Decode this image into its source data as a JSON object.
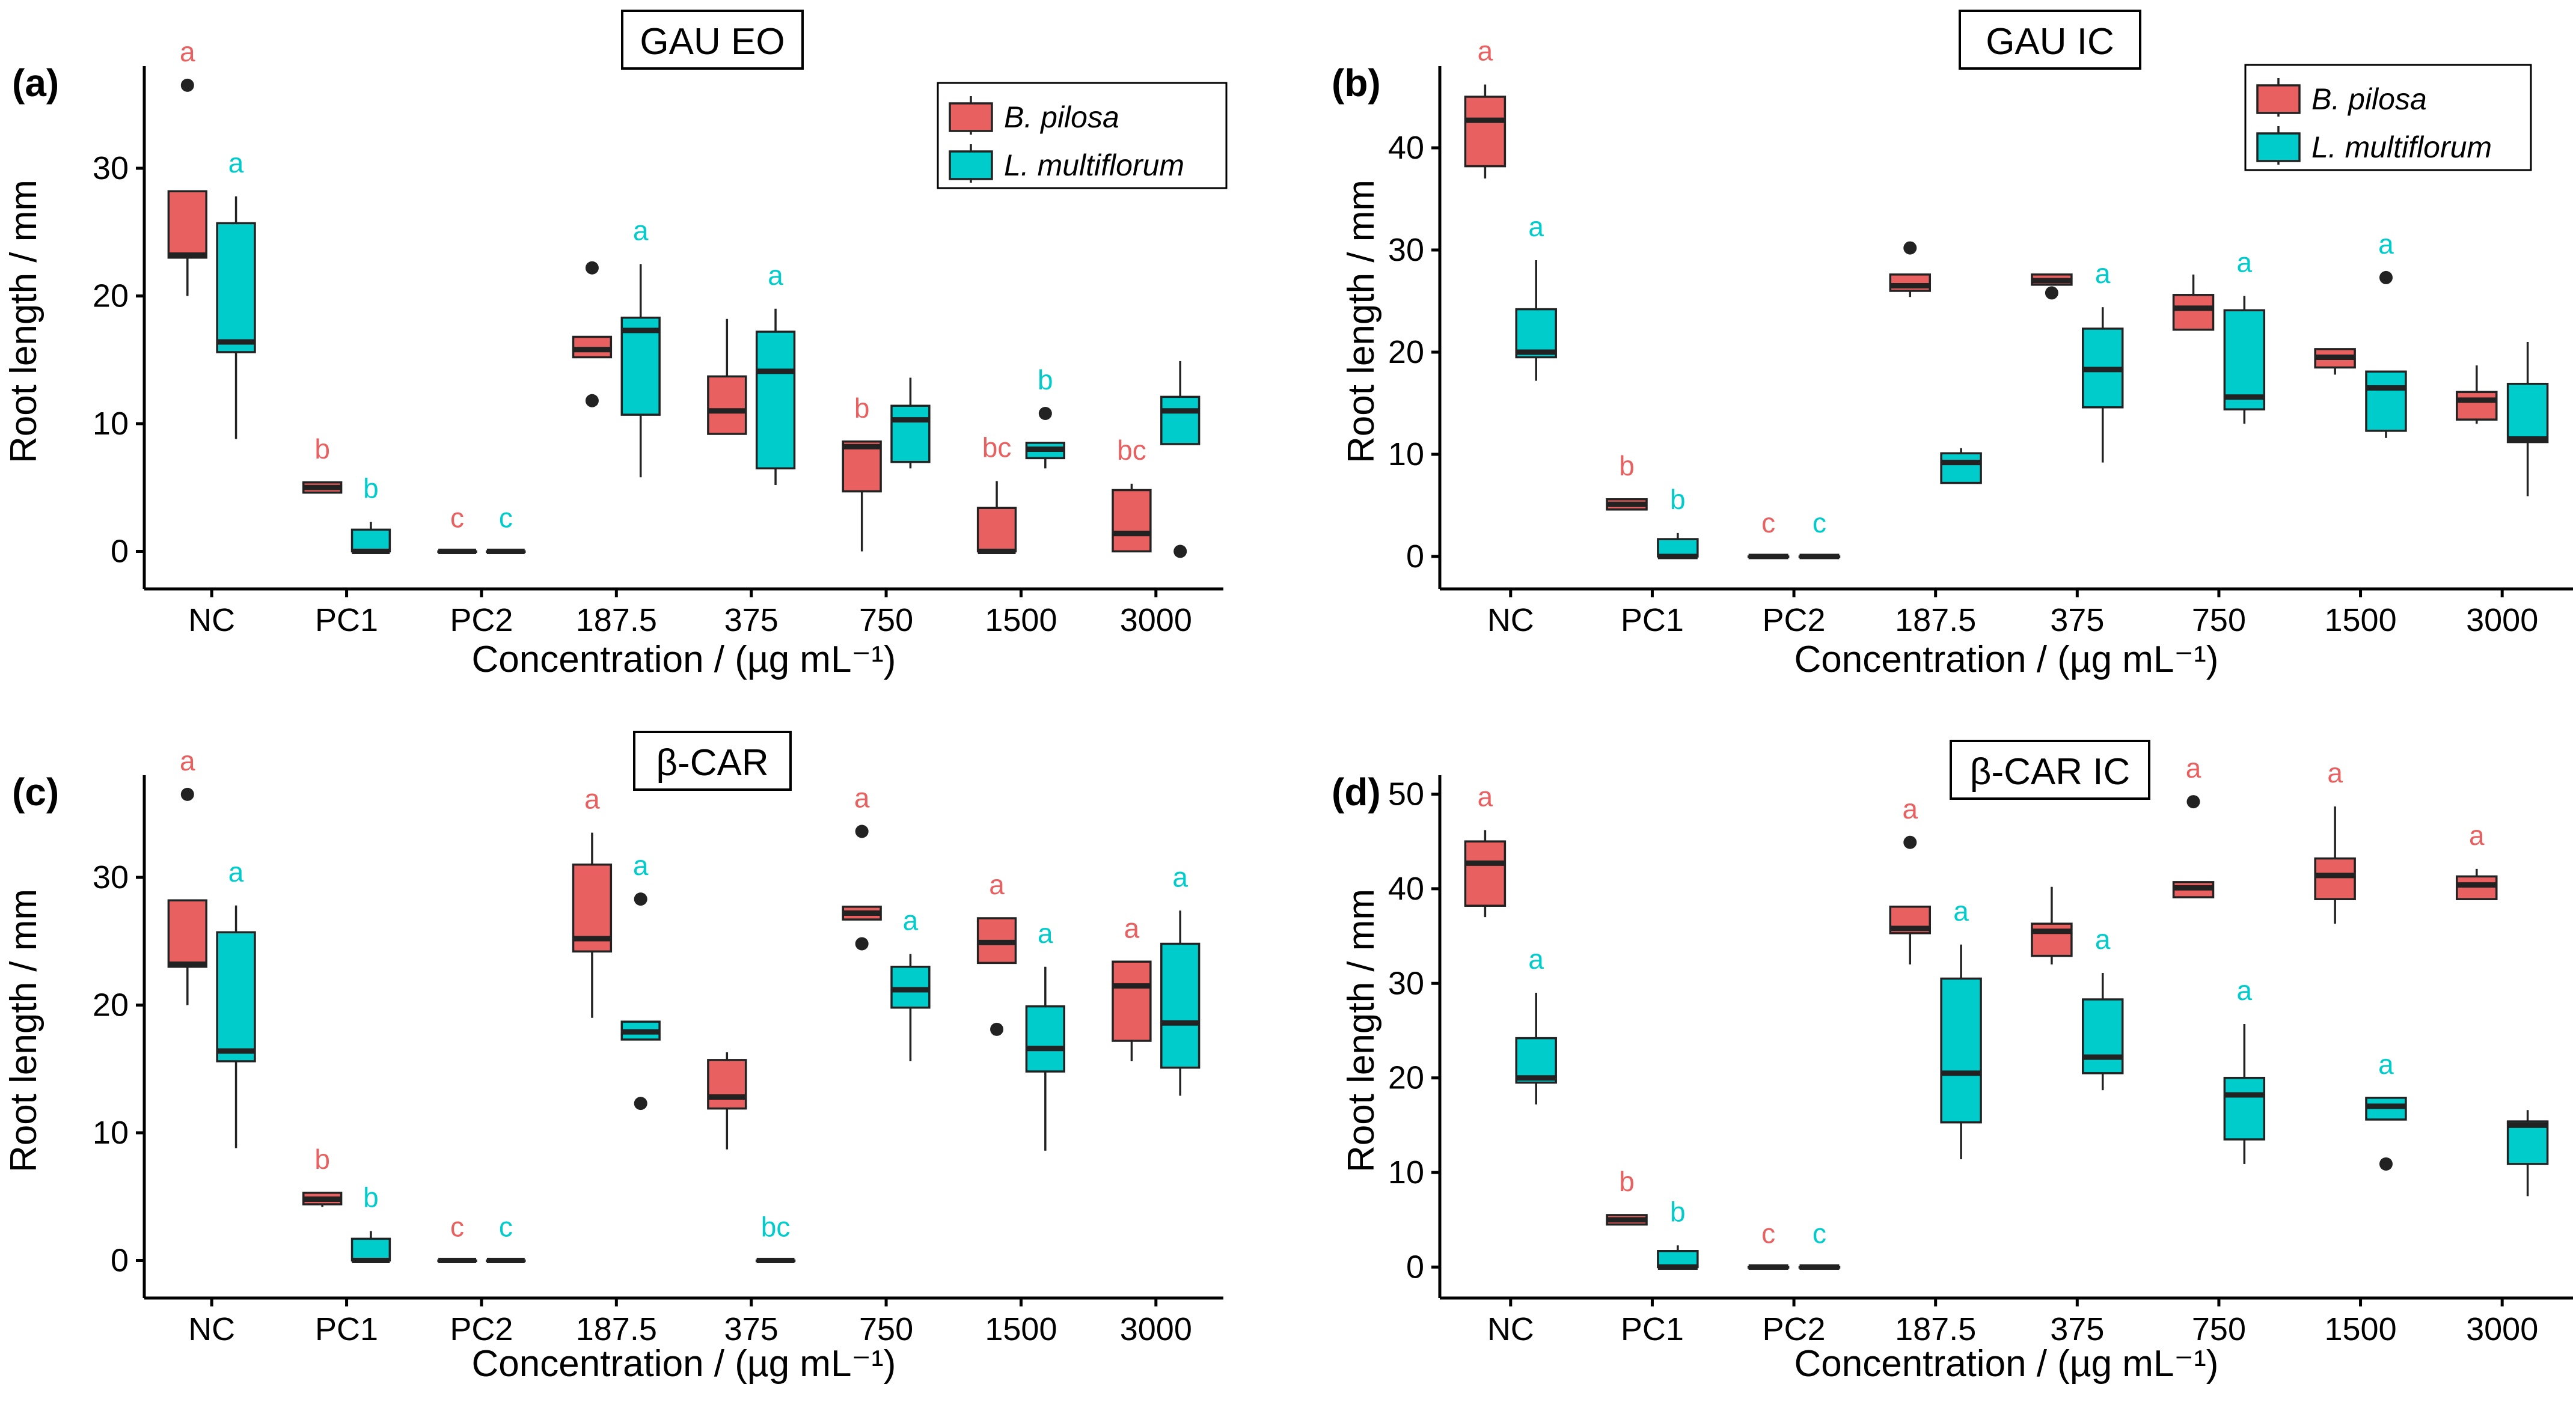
{
  "colors": {
    "b_pilosa": "#E86060",
    "l_multiflorum": "#00CCCC"
  },
  "legend": {
    "b_pilosa": "B. pilosa",
    "l_multiflorum": "L. multiflorum"
  },
  "chart_data": [
    {
      "type": "box",
      "panel_label": "(a)",
      "title": "GAU EO",
      "xlabel": "Concentration / (µg mL⁻¹)",
      "ylabel": "Root length / mm",
      "ylim": [
        -2,
        38
      ],
      "yticks": [
        0,
        10,
        20,
        30
      ],
      "categories": [
        "NC",
        "PC1",
        "PC2",
        "187.5",
        "375",
        "750",
        "1500",
        "3000"
      ],
      "series": [
        {
          "name": "B. pilosa",
          "boxes": [
            {
              "min": 20,
              "q1": 23,
              "median": 23.2,
              "q3": 28.2,
              "max": 28.2,
              "outliers": [
                36.5
              ],
              "letter": "a"
            },
            {
              "min": 4.6,
              "q1": 4.6,
              "median": 5,
              "q3": 5.4,
              "max": 5.4,
              "outliers": [],
              "letter": "b"
            },
            {
              "min": 0,
              "q1": 0,
              "median": 0,
              "q3": 0,
              "max": 0,
              "outliers": [],
              "letter": "c"
            },
            {
              "min": 15.2,
              "q1": 15.2,
              "median": 15.8,
              "q3": 16.8,
              "max": 16.8,
              "outliers": [
                22.2,
                11.8
              ],
              "letter": ""
            },
            {
              "min": 9.2,
              "q1": 9.2,
              "median": 11,
              "q3": 13.7,
              "max": 18.2,
              "outliers": [],
              "letter": ""
            },
            {
              "min": 0,
              "q1": 4.7,
              "median": 8.2,
              "q3": 8.6,
              "max": 8.6,
              "outliers": [],
              "letter": "b"
            },
            {
              "min": 0,
              "q1": 0,
              "median": 0,
              "q3": 3.4,
              "max": 5.5,
              "outliers": [],
              "letter": "bc"
            },
            {
              "min": 0,
              "q1": 0,
              "median": 1.4,
              "q3": 4.8,
              "max": 5.3,
              "outliers": [],
              "letter": "bc"
            }
          ]
        },
        {
          "name": "L. multiflorum",
          "boxes": [
            {
              "min": 8.8,
              "q1": 15.6,
              "median": 16.4,
              "q3": 25.7,
              "max": 27.8,
              "outliers": [],
              "letter": "a"
            },
            {
              "min": 0,
              "q1": 0,
              "median": 0,
              "q3": 1.7,
              "max": 2.3,
              "outliers": [],
              "letter": "b"
            },
            {
              "min": 0,
              "q1": 0,
              "median": 0,
              "q3": 0,
              "max": 0,
              "outliers": [],
              "letter": "c"
            },
            {
              "min": 5.8,
              "q1": 10.7,
              "median": 17.3,
              "q3": 18.3,
              "max": 22.5,
              "outliers": [],
              "letter": "a"
            },
            {
              "min": 5.2,
              "q1": 6.5,
              "median": 14.1,
              "q3": 17.2,
              "max": 19,
              "outliers": [],
              "letter": "a"
            },
            {
              "min": 6.5,
              "q1": 7,
              "median": 10.3,
              "q3": 11.4,
              "max": 13.6,
              "outliers": [],
              "letter": ""
            },
            {
              "min": 6.5,
              "q1": 7.3,
              "median": 8,
              "q3": 8.5,
              "max": 8.5,
              "outliers": [
                10.8
              ],
              "letter": "b"
            },
            {
              "min": 8.4,
              "q1": 8.4,
              "median": 11,
              "q3": 12.1,
              "max": 14.9,
              "outliers": [
                0
              ],
              "letter": ""
            }
          ]
        }
      ]
    },
    {
      "type": "box",
      "panel_label": "(b)",
      "title": "GAU IC",
      "xlabel": "Concentration / (µg mL⁻¹)",
      "ylabel": "Root length / mm",
      "ylim": [
        -2,
        48
      ],
      "yticks": [
        0,
        10,
        20,
        30,
        40
      ],
      "categories": [
        "NC",
        "PC1",
        "PC2",
        "187.5",
        "375",
        "750",
        "1500",
        "3000"
      ],
      "series": [
        {
          "name": "B. pilosa",
          "boxes": [
            {
              "min": 37,
              "q1": 38.2,
              "median": 42.7,
              "q3": 45,
              "max": 46.2,
              "outliers": [],
              "letter": "a"
            },
            {
              "min": 4.6,
              "q1": 4.6,
              "median": 5.1,
              "q3": 5.6,
              "max": 5.6,
              "outliers": [],
              "letter": "b"
            },
            {
              "min": 0,
              "q1": 0,
              "median": 0,
              "q3": 0,
              "max": 0,
              "outliers": [],
              "letter": "c"
            },
            {
              "min": 25.4,
              "q1": 26,
              "median": 26.5,
              "q3": 27.6,
              "max": 27.6,
              "outliers": [
                30.2
              ],
              "letter": ""
            },
            {
              "min": 26.6,
              "q1": 26.6,
              "median": 27,
              "q3": 27.6,
              "max": 27.6,
              "outliers": [
                25.8
              ],
              "letter": ""
            },
            {
              "min": 22.2,
              "q1": 22.2,
              "median": 24.3,
              "q3": 25.6,
              "max": 27.6,
              "outliers": [],
              "letter": ""
            },
            {
              "min": 17.8,
              "q1": 18.5,
              "median": 19.5,
              "q3": 20.3,
              "max": 20.3,
              "outliers": [],
              "letter": ""
            },
            {
              "min": 13,
              "q1": 13.4,
              "median": 15.3,
              "q3": 16.1,
              "max": 18.7,
              "outliers": [],
              "letter": ""
            }
          ]
        },
        {
          "name": "L. multiflorum",
          "boxes": [
            {
              "min": 17.2,
              "q1": 19.5,
              "median": 20,
              "q3": 24.2,
              "max": 29,
              "outliers": [],
              "letter": "a"
            },
            {
              "min": 0,
              "q1": 0,
              "median": 0,
              "q3": 1.7,
              "max": 2.3,
              "outliers": [],
              "letter": "b"
            },
            {
              "min": 0,
              "q1": 0,
              "median": 0,
              "q3": 0,
              "max": 0,
              "outliers": [],
              "letter": "c"
            },
            {
              "min": 7.2,
              "q1": 7.2,
              "median": 9.2,
              "q3": 10.1,
              "max": 10.6,
              "outliers": [],
              "letter": ""
            },
            {
              "min": 9.2,
              "q1": 14.6,
              "median": 18.3,
              "q3": 22.3,
              "max": 24.4,
              "outliers": [],
              "letter": "a"
            },
            {
              "min": 13,
              "q1": 14.4,
              "median": 15.6,
              "q3": 24.1,
              "max": 25.5,
              "outliers": [],
              "letter": "a"
            },
            {
              "min": 11.6,
              "q1": 12.3,
              "median": 16.5,
              "q3": 18.1,
              "max": 18.1,
              "outliers": [
                27.3
              ],
              "letter": "a"
            },
            {
              "min": 5.9,
              "q1": 11.2,
              "median": 11.5,
              "q3": 16.9,
              "max": 21,
              "outliers": [],
              "letter": ""
            }
          ]
        }
      ]
    },
    {
      "type": "box",
      "panel_label": "(c)",
      "title": "β-CAR",
      "xlabel": "Concentration / (µg mL⁻¹)",
      "ylabel": "Root length / mm",
      "ylim": [
        -2,
        38
      ],
      "yticks": [
        0,
        10,
        20,
        30
      ],
      "categories": [
        "NC",
        "PC1",
        "PC2",
        "187.5",
        "375",
        "750",
        "1500",
        "3000"
      ],
      "series": [
        {
          "name": "B. pilosa",
          "boxes": [
            {
              "min": 20,
              "q1": 23,
              "median": 23.2,
              "q3": 28.2,
              "max": 28.2,
              "outliers": [
                36.5
              ],
              "letter": "a"
            },
            {
              "min": 4.2,
              "q1": 4.4,
              "median": 4.8,
              "q3": 5.3,
              "max": 5.3,
              "outliers": [],
              "letter": "b"
            },
            {
              "min": 0,
              "q1": 0,
              "median": 0,
              "q3": 0,
              "max": 0,
              "outliers": [],
              "letter": "c"
            },
            {
              "min": 19,
              "q1": 24.2,
              "median": 25.2,
              "q3": 31,
              "max": 33.5,
              "outliers": [],
              "letter": "a"
            },
            {
              "min": 8.7,
              "q1": 11.9,
              "median": 12.8,
              "q3": 15.7,
              "max": 16.3,
              "outliers": [],
              "letter": ""
            },
            {
              "min": 26.7,
              "q1": 26.7,
              "median": 27.2,
              "q3": 27.7,
              "max": 27.7,
              "outliers": [
                33.6,
                24.8
              ],
              "letter": "a"
            },
            {
              "min": 23.3,
              "q1": 23.3,
              "median": 24.9,
              "q3": 26.8,
              "max": 26.8,
              "outliers": [
                18.1
              ],
              "letter": "a"
            },
            {
              "min": 15.6,
              "q1": 17.2,
              "median": 21.5,
              "q3": 23.4,
              "max": 23.4,
              "outliers": [],
              "letter": "a"
            }
          ]
        },
        {
          "name": "L. multiflorum",
          "boxes": [
            {
              "min": 8.8,
              "q1": 15.6,
              "median": 16.4,
              "q3": 25.7,
              "max": 27.8,
              "outliers": [],
              "letter": "a"
            },
            {
              "min": 0,
              "q1": 0,
              "median": 0,
              "q3": 1.7,
              "max": 2.3,
              "outliers": [],
              "letter": "b"
            },
            {
              "min": 0,
              "q1": 0,
              "median": 0,
              "q3": 0,
              "max": 0,
              "outliers": [],
              "letter": "c"
            },
            {
              "min": 17.3,
              "q1": 17.3,
              "median": 17.9,
              "q3": 18.7,
              "max": 18.7,
              "outliers": [
                28.3,
                12.3
              ],
              "letter": "a"
            },
            {
              "min": 0,
              "q1": 0,
              "median": 0,
              "q3": 0,
              "max": 0,
              "outliers": [],
              "letter": "bc"
            },
            {
              "min": 15.6,
              "q1": 19.8,
              "median": 21.2,
              "q3": 23,
              "max": 24,
              "outliers": [],
              "letter": "a"
            },
            {
              "min": 8.6,
              "q1": 14.8,
              "median": 16.6,
              "q3": 19.9,
              "max": 23,
              "outliers": [],
              "letter": "a"
            },
            {
              "min": 12.9,
              "q1": 15.1,
              "median": 18.6,
              "q3": 24.8,
              "max": 27.4,
              "outliers": [],
              "letter": "a"
            }
          ]
        }
      ]
    },
    {
      "type": "box",
      "panel_label": "(d)",
      "title": "β-CAR IC",
      "xlabel": "Concentration / (µg mL⁻¹)",
      "ylabel": "Root length / mm",
      "ylim": [
        -2,
        52
      ],
      "yticks": [
        0,
        10,
        20,
        30,
        40,
        50
      ],
      "categories": [
        "NC",
        "PC1",
        "PC2",
        "187.5",
        "375",
        "750",
        "1500",
        "3000"
      ],
      "series": [
        {
          "name": "B. pilosa",
          "boxes": [
            {
              "min": 37,
              "q1": 38.2,
              "median": 42.7,
              "q3": 45,
              "max": 46.2,
              "outliers": [],
              "letter": "a"
            },
            {
              "min": 4.5,
              "q1": 4.5,
              "median": 5,
              "q3": 5.5,
              "max": 5.5,
              "outliers": [],
              "letter": "b"
            },
            {
              "min": 0,
              "q1": 0,
              "median": 0,
              "q3": 0,
              "max": 0,
              "outliers": [],
              "letter": "c"
            },
            {
              "min": 32,
              "q1": 35.3,
              "median": 35.8,
              "q3": 38.1,
              "max": 38.1,
              "outliers": [
                44.9
              ],
              "letter": "a"
            },
            {
              "min": 32,
              "q1": 32.9,
              "median": 35.5,
              "q3": 36.3,
              "max": 40.2,
              "outliers": [],
              "letter": ""
            },
            {
              "min": 39.1,
              "q1": 39.1,
              "median": 40.1,
              "q3": 40.7,
              "max": 40.7,
              "outliers": [
                49.2
              ],
              "letter": "a"
            },
            {
              "min": 36.3,
              "q1": 38.9,
              "median": 41.4,
              "q3": 43.2,
              "max": 48.7,
              "outliers": [],
              "letter": "a"
            },
            {
              "min": 38.9,
              "q1": 38.9,
              "median": 40.4,
              "q3": 41.3,
              "max": 42.1,
              "outliers": [],
              "letter": "a"
            }
          ]
        },
        {
          "name": "L. multiflorum",
          "boxes": [
            {
              "min": 17.2,
              "q1": 19.5,
              "median": 20,
              "q3": 24.2,
              "max": 29,
              "outliers": [],
              "letter": "a"
            },
            {
              "min": 0,
              "q1": 0,
              "median": 0,
              "q3": 1.7,
              "max": 2.3,
              "outliers": [],
              "letter": "b"
            },
            {
              "min": 0,
              "q1": 0,
              "median": 0,
              "q3": 0,
              "max": 0,
              "outliers": [],
              "letter": "c"
            },
            {
              "min": 11.4,
              "q1": 15.3,
              "median": 20.5,
              "q3": 30.5,
              "max": 34.1,
              "outliers": [],
              "letter": "a"
            },
            {
              "min": 18.7,
              "q1": 20.5,
              "median": 22.2,
              "q3": 28.3,
              "max": 31.1,
              "outliers": [],
              "letter": "a"
            },
            {
              "min": 10.9,
              "q1": 13.5,
              "median": 18.2,
              "q3": 20,
              "max": 25.7,
              "outliers": [],
              "letter": "a"
            },
            {
              "min": 15.6,
              "q1": 15.6,
              "median": 17,
              "q3": 17.9,
              "max": 17.9,
              "outliers": [
                10.9
              ],
              "letter": "a"
            },
            {
              "min": 7.5,
              "q1": 10.9,
              "median": 15,
              "q3": 15.4,
              "max": 16.6,
              "outliers": [],
              "letter": ""
            }
          ]
        }
      ]
    }
  ]
}
